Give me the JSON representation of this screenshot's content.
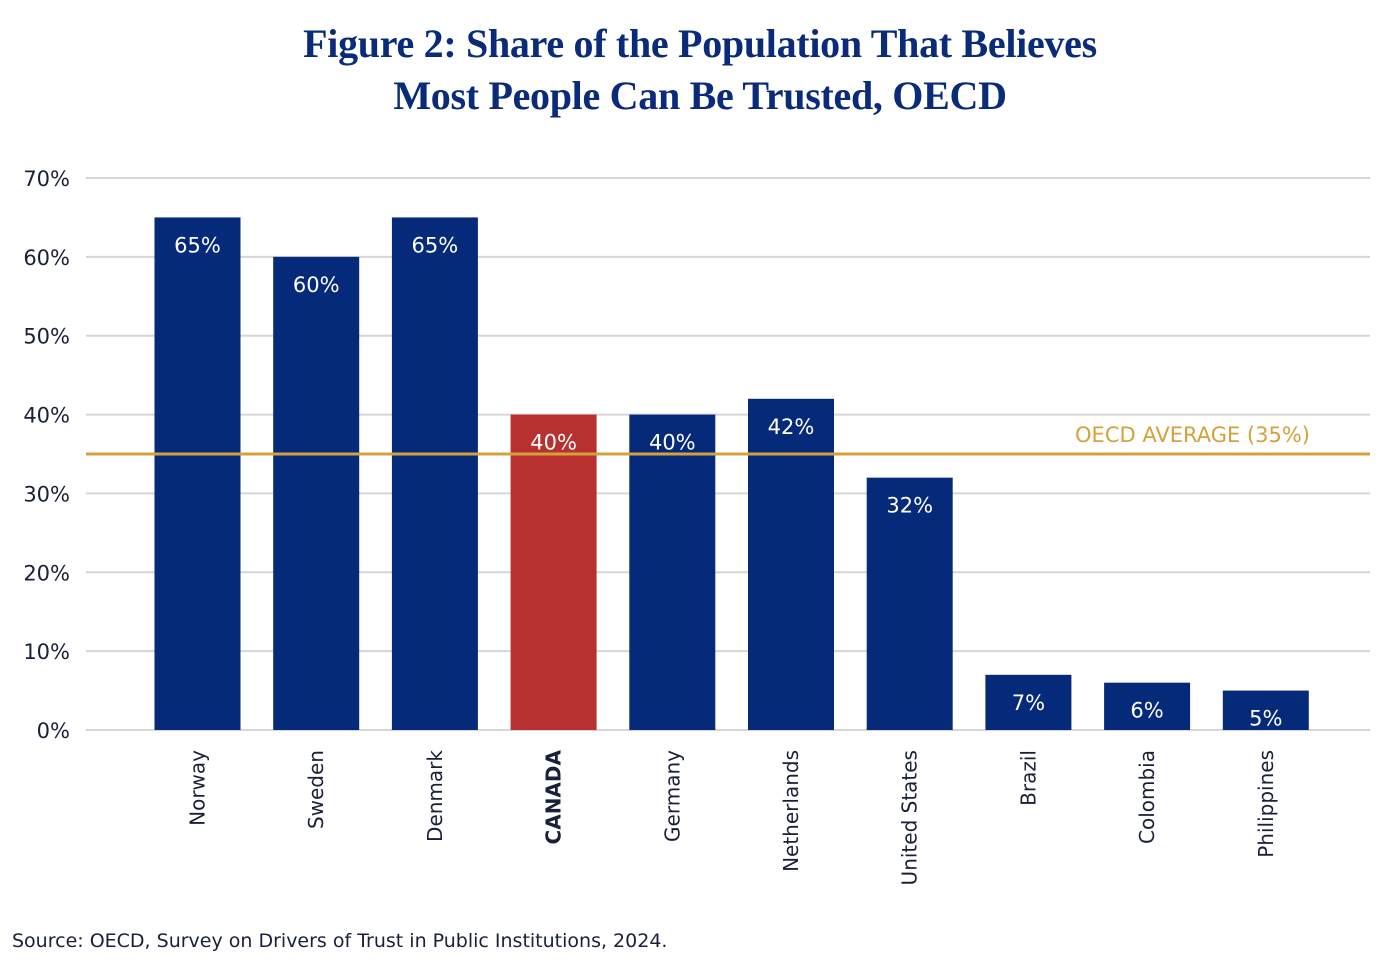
{
  "title_lines": [
    "Figure 2: Share of the Population That Believes",
    "Most People Can Be Trusted, OECD"
  ],
  "source": "Source: OECD, Survey on Drivers of Trust in Public Institutions, 2024.",
  "colors": {
    "bar": "#062a7a",
    "highlight_bar": "#b83030",
    "average_line": "#d4a23a",
    "gridline": "#d6d6d6",
    "title": "#0a2a7a",
    "axis_text": "#1a1f3a",
    "bar_label": "#ffffff"
  },
  "chart_data": {
    "type": "bar",
    "title": "Figure 2: Share of the Population That Believes Most People Can Be Trusted, OECD",
    "xlabel": "",
    "ylabel": "",
    "categories": [
      "Norway",
      "Sweden",
      "Denmark",
      "CANADA",
      "Germany",
      "Netherlands",
      "United States",
      "Brazil",
      "Colombia",
      "Philippines"
    ],
    "values": [
      65,
      60,
      65,
      40,
      40,
      42,
      32,
      7,
      6,
      5
    ],
    "data_labels": [
      "65%",
      "60%",
      "65%",
      "40%",
      "40%",
      "42%",
      "32%",
      "7%",
      "6%",
      "5%"
    ],
    "highlight": "CANADA",
    "ylim": [
      0,
      70
    ],
    "yticks": [
      0,
      10,
      20,
      30,
      40,
      50,
      60,
      70
    ],
    "ytick_labels": [
      "0%",
      "10%",
      "20%",
      "30%",
      "40%",
      "50%",
      "60%",
      "70%"
    ],
    "grid": true,
    "reference_line": {
      "value": 35,
      "label": "OECD AVERAGE (35%)"
    },
    "source": "Source: OECD, Survey on Drivers of Trust in Public Institutions, 2024."
  }
}
